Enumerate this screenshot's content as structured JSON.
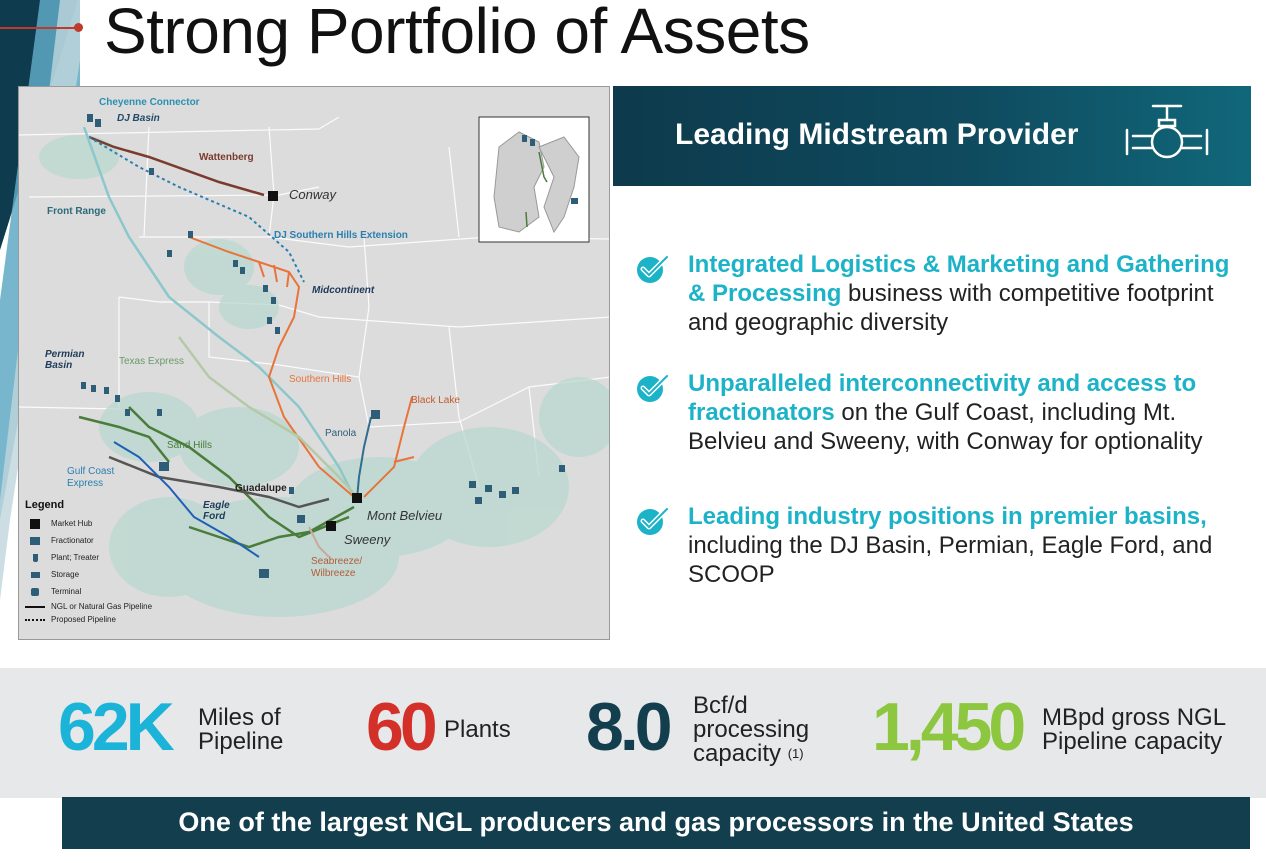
{
  "slide": {
    "title": "Strong Portfolio of Assets"
  },
  "map": {
    "labels": {
      "cheyenne_connector": "Cheyenne Connector",
      "dj_basin": "DJ Basin",
      "wattenberg": "Wattenberg",
      "conway": "Conway",
      "front_range": "Front Range",
      "dj_southern_hills_extension": "DJ Southern Hills Extension",
      "midcontinent": "Midcontinent",
      "permian_basin": "Permian Basin",
      "texas_express": "Texas Express",
      "southern_hills": "Southern Hills",
      "black_lake": "Black Lake",
      "panola": "Panola",
      "sand_hills": "Sand Hills",
      "gulf_coast_express": "Gulf Coast Express",
      "guadalupe": "Guadalupe",
      "eagle_ford": "Eagle Ford",
      "mont_belvieu": "Mont Belvieu",
      "sweeny": "Sweeny",
      "seabreeze_wilbreeze": "Seabreeze/ Wilbreeze"
    },
    "legend": {
      "title": "Legend",
      "items": [
        "Market Hub",
        "Fractionator",
        "Plant; Treater",
        "Storage",
        "Terminal",
        "NGL or Natural Gas Pipeline",
        "Proposed Pipeline"
      ]
    },
    "colors": {
      "wattenberg": "#7a3b2e",
      "dj_extension": "#2a7fb0",
      "front_range": "#8cc7cc",
      "midcontinent": "#e8743b",
      "texas_express": "#b5c9a8",
      "sand_hills": "#4a7c3a",
      "gulf_coast_express": "#555555",
      "blue_line": "#1f5fb8",
      "panola": "#2e6e8e",
      "asset_icon": "#2e5d78"
    }
  },
  "banner": {
    "title": "Leading Midstream Provider",
    "icon": "valve-icon"
  },
  "bullets": [
    {
      "highlight": "Integrated Logistics & Marketing and Gathering & Processing",
      "rest": " business with competitive footprint and geographic diversity"
    },
    {
      "highlight": "Unparalleled interconnectivity and access to fractionators",
      "rest": " on the Gulf Coast, including Mt. Belvieu and Sweeny, with Conway for optionality"
    },
    {
      "highlight": "Leading industry positions in premier basins,",
      "rest": " including the DJ Basin, Permian, Eagle Ford, and SCOOP"
    }
  ],
  "stats": [
    {
      "value": "62K",
      "label_line1": "Miles of",
      "label_line2": "Pipeline",
      "color": "#1cb3d8"
    },
    {
      "value": "60",
      "label_line1": "Plants",
      "color": "#d4302a"
    },
    {
      "value": "8.0",
      "label_line1": "Bcf/d",
      "label_line2": "processing",
      "label_line3": "capacity",
      "footnote": "(1)",
      "color": "#123e4e"
    },
    {
      "value": "1,450",
      "label_line1": "MBpd gross NGL",
      "label_line2": "Pipeline capacity",
      "color": "#8dc63f"
    }
  ],
  "footer": {
    "text": "One of the largest NGL producers and gas processors in the United States"
  }
}
